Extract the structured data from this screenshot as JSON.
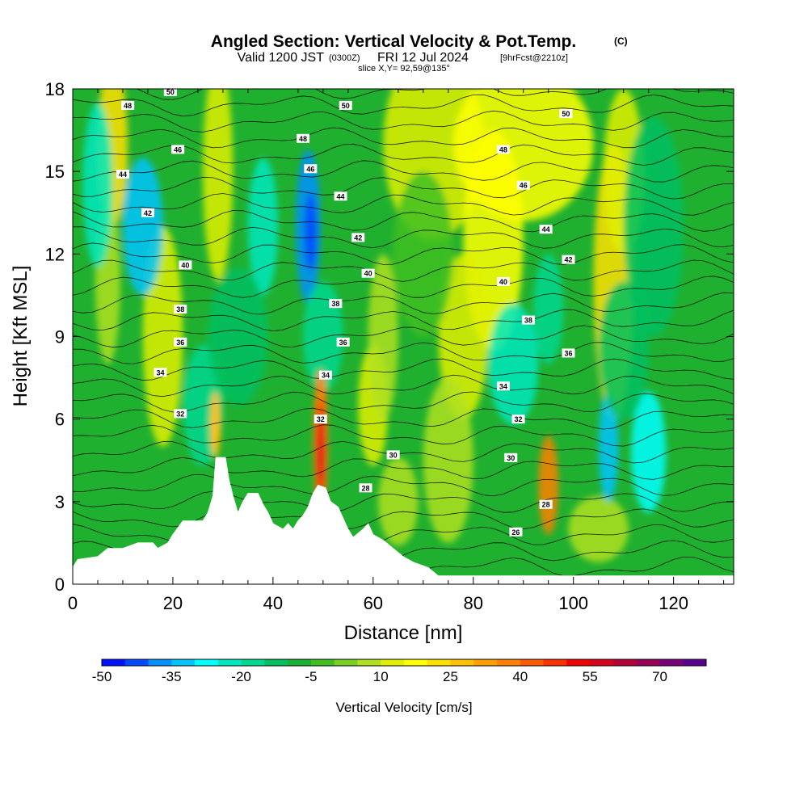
{
  "title": {
    "main": "Angled Section: Vertical Velocity & Pot.Temp.",
    "main_suffix": "(C)",
    "valid_prefix": "Valid 1200 JST",
    "valid_utc": "(0300Z)",
    "valid_date": "FRI 12 Jul 2024",
    "forecast": "[9hrFcst@2210z]",
    "slice": "slice X,Y= 92,59@135°"
  },
  "chart_data": {
    "type": "heatmap",
    "xlabel": "Distance [nm]",
    "ylabel": "Height [Kft MSL]",
    "xlim": [
      0,
      132
    ],
    "ylim": [
      0,
      18
    ],
    "x_ticks": [
      0,
      20,
      40,
      60,
      80,
      100,
      120
    ],
    "y_ticks": [
      0,
      3,
      6,
      9,
      12,
      15,
      18
    ],
    "colorbar": {
      "title": "Vertical Velocity [cm/s]",
      "tick_labels": [
        "-50",
        "-35",
        "-20",
        "-5",
        "10",
        "25",
        "40",
        "55",
        "70"
      ],
      "tick_values": [
        -50,
        -35,
        -20,
        -5,
        10,
        25,
        40,
        55,
        70
      ],
      "range": [
        -50,
        80
      ],
      "colors": [
        "#0010ff",
        "#0048ff",
        "#0090ff",
        "#00c4ff",
        "#00ffff",
        "#00e8c0",
        "#00d890",
        "#00c060",
        "#18b030",
        "#40c020",
        "#78d020",
        "#b0e020",
        "#e0f000",
        "#ffff00",
        "#ffe000",
        "#ffc000",
        "#ffa000",
        "#ff8000",
        "#ff5a00",
        "#ff3000",
        "#f00000",
        "#d8001c",
        "#b80038",
        "#980058",
        "#780078",
        "#580090"
      ]
    },
    "isentrope_labels": [
      {
        "x": 11,
        "y": 17.4,
        "v": "48"
      },
      {
        "x": 19.5,
        "y": 17.9,
        "v": "50"
      },
      {
        "x": 21,
        "y": 15.8,
        "v": "46"
      },
      {
        "x": 10,
        "y": 14.9,
        "v": "44"
      },
      {
        "x": 15,
        "y": 13.5,
        "v": "42"
      },
      {
        "x": 22.5,
        "y": 11.6,
        "v": "40"
      },
      {
        "x": 21.5,
        "y": 10.0,
        "v": "38"
      },
      {
        "x": 21.5,
        "y": 8.8,
        "v": "36"
      },
      {
        "x": 17.5,
        "y": 7.7,
        "v": "34"
      },
      {
        "x": 21.5,
        "y": 6.2,
        "v": "32"
      },
      {
        "x": 46,
        "y": 16.2,
        "v": "48"
      },
      {
        "x": 47.5,
        "y": 15.1,
        "v": "46"
      },
      {
        "x": 54.5,
        "y": 17.4,
        "v": "50"
      },
      {
        "x": 53.5,
        "y": 14.1,
        "v": "44"
      },
      {
        "x": 57,
        "y": 12.6,
        "v": "42"
      },
      {
        "x": 59,
        "y": 11.3,
        "v": "40"
      },
      {
        "x": 52.5,
        "y": 10.2,
        "v": "38"
      },
      {
        "x": 54,
        "y": 8.8,
        "v": "36"
      },
      {
        "x": 50.5,
        "y": 7.6,
        "v": "34"
      },
      {
        "x": 49.5,
        "y": 6.0,
        "v": "32"
      },
      {
        "x": 64,
        "y": 4.7,
        "v": "30"
      },
      {
        "x": 58.5,
        "y": 3.5,
        "v": "28"
      },
      {
        "x": 86,
        "y": 15.8,
        "v": "48"
      },
      {
        "x": 98.5,
        "y": 17.1,
        "v": "50"
      },
      {
        "x": 90,
        "y": 14.5,
        "v": "46"
      },
      {
        "x": 94.5,
        "y": 12.9,
        "v": "44"
      },
      {
        "x": 99,
        "y": 11.8,
        "v": "42"
      },
      {
        "x": 86,
        "y": 11.0,
        "v": "40"
      },
      {
        "x": 91,
        "y": 9.6,
        "v": "38"
      },
      {
        "x": 99,
        "y": 8.4,
        "v": "36"
      },
      {
        "x": 86,
        "y": 7.2,
        "v": "34"
      },
      {
        "x": 89,
        "y": 6.0,
        "v": "32"
      },
      {
        "x": 87.5,
        "y": 4.6,
        "v": "30"
      },
      {
        "x": 94.5,
        "y": 2.9,
        "v": "28"
      },
      {
        "x": 88.5,
        "y": 1.9,
        "v": "26"
      }
    ]
  }
}
